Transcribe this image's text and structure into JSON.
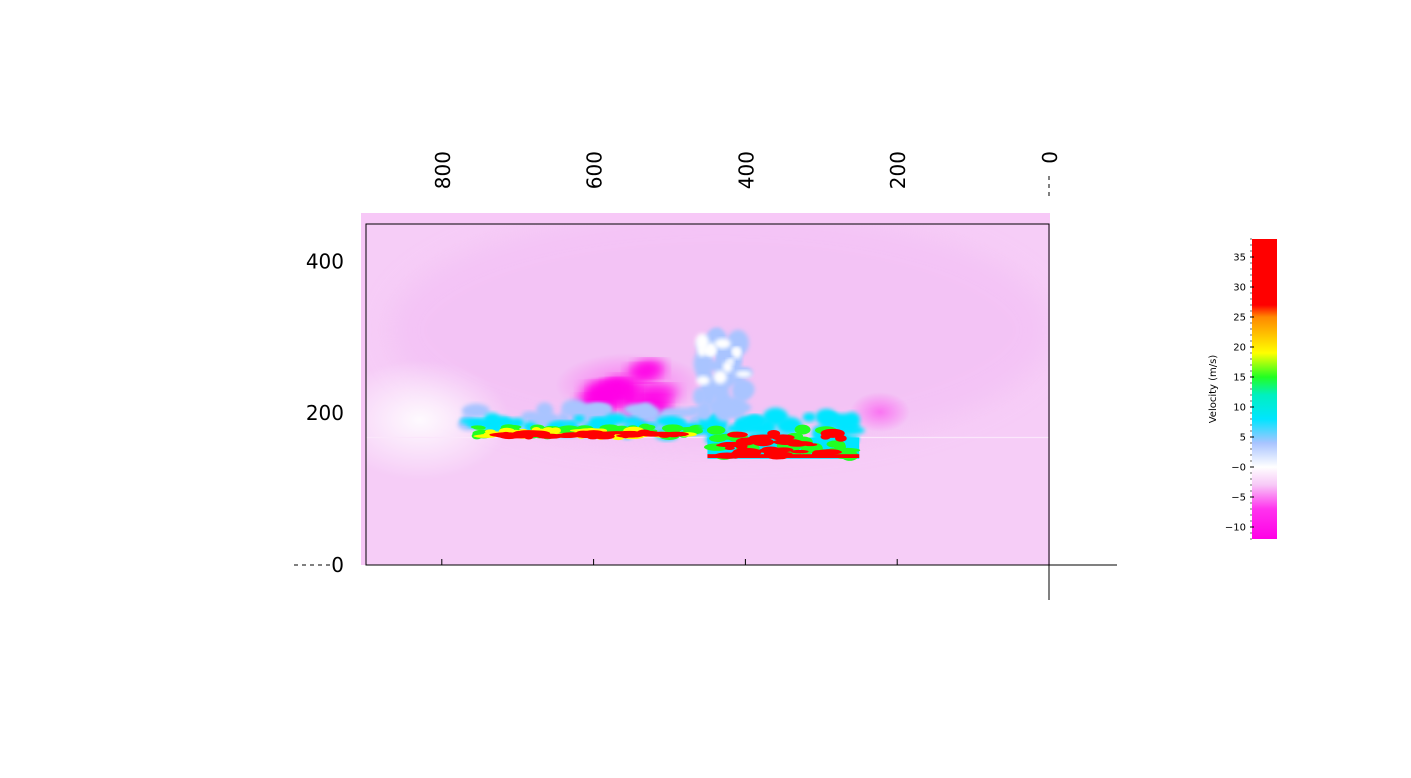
{
  "chart_data": {
    "type": "heatmap",
    "title": "",
    "xlabel": "",
    "ylabel": "",
    "x_ticks": [
      "800",
      "600",
      "400",
      "200",
      "0"
    ],
    "x_tick_values": [
      800,
      600,
      400,
      200,
      0
    ],
    "x_axis_reversed": true,
    "xlim": [
      0,
      900
    ],
    "y_ticks": [
      "400",
      "200",
      "0"
    ],
    "y_tick_values": [
      400,
      200,
      0
    ],
    "ylim": [
      0,
      450
    ],
    "grid": false,
    "colorbar": {
      "label": "Velocity (m/s)",
      "ticks": [
        "35",
        "30",
        "25",
        "20",
        "15",
        "10",
        "5",
        "−0",
        "−5",
        "−10"
      ],
      "tick_values": [
        35,
        30,
        25,
        20,
        15,
        10,
        5,
        0,
        -5,
        -10
      ],
      "range": [
        -12,
        38
      ],
      "colors": [
        {
          "value": -12,
          "color": "#ff00e6"
        },
        {
          "value": -7,
          "color": "#ff33ee"
        },
        {
          "value": -3,
          "color": "#f7c8f7"
        },
        {
          "value": 0,
          "color": "#ffffff"
        },
        {
          "value": 4,
          "color": "#a9c4ff"
        },
        {
          "value": 8,
          "color": "#00e5ff"
        },
        {
          "value": 12,
          "color": "#00f0c0"
        },
        {
          "value": 15,
          "color": "#22ff22"
        },
        {
          "value": 19,
          "color": "#ffff00"
        },
        {
          "value": 25,
          "color": "#ff8800"
        },
        {
          "value": 27,
          "color": "#ff0000"
        },
        {
          "value": 38,
          "color": "#ff0000"
        }
      ],
      "placement": "right"
    },
    "background_value": -2,
    "ground_level": 168,
    "structure": {
      "x_range": [
        250,
        450
      ],
      "top": 168,
      "bottom": 140
    },
    "plume_regions": [
      {
        "x_range": [
          450,
          780
        ],
        "y_range": [
          168,
          200
        ],
        "max_velocity": 35
      },
      {
        "x_range": [
          250,
          450
        ],
        "y_range": [
          140,
          205
        ],
        "max_velocity": 35
      },
      {
        "x_range": [
          400,
          460
        ],
        "y_range": [
          200,
          300
        ],
        "max_velocity": 5
      },
      {
        "x_range": [
          500,
          650
        ],
        "y_range": [
          200,
          260
        ],
        "min_velocity": -10
      }
    ]
  }
}
